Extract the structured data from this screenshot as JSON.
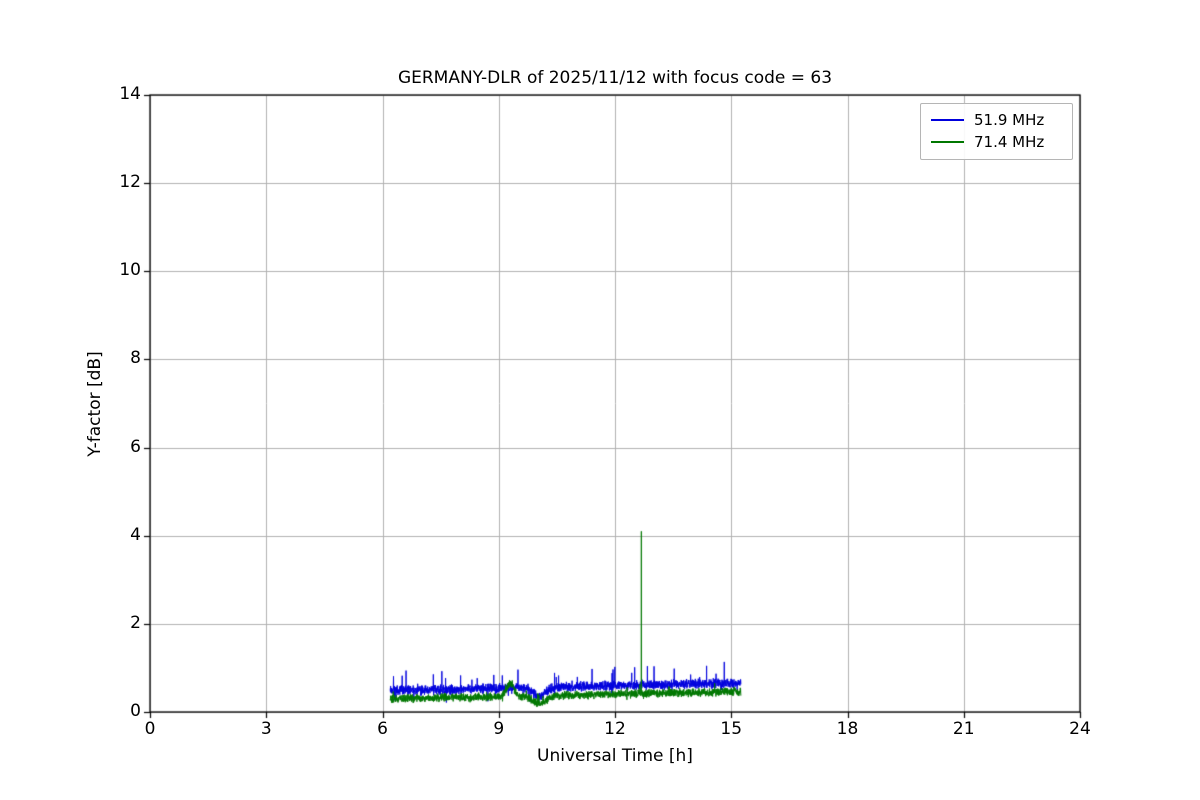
{
  "figure": {
    "background": "#ffffff"
  },
  "chart_data": {
    "type": "line",
    "title": "GERMANY-DLR of 2025/11/12 with focus code = 63",
    "xlabel": "Universal Time [h]",
    "ylabel": "Y-factor [dB]",
    "xlim": [
      0,
      24
    ],
    "ylim": [
      0,
      14
    ],
    "xticks": [
      0,
      3,
      6,
      9,
      12,
      15,
      18,
      21,
      24
    ],
    "yticks": [
      0,
      2,
      4,
      6,
      8,
      10,
      12,
      14
    ],
    "grid": true,
    "grid_color": "#b0b0b0",
    "axis_color": "#000000",
    "legend_position": "upper right",
    "series": [
      {
        "name": "51.9 MHz",
        "color": "#0000dd",
        "seed": 12345,
        "x_range": [
          6.2,
          15.25
        ],
        "sample_step": 0.004,
        "baseline": [
          0.48,
          0.66
        ],
        "noise_amplitude": 0.15,
        "spike_probability": 0.02,
        "spike_amplitude": 0.45,
        "features": [
          {
            "type": "dip",
            "center": 10.05,
            "width": 0.22,
            "depth": 0.2
          }
        ],
        "events": [],
        "description": "noisy near-flat trace between 0.3 and 1.2 dB from ~06:12 to ~15:15 UT"
      },
      {
        "name": "71.4 MHz",
        "color": "#007700",
        "seed": 67890,
        "x_range": [
          6.2,
          15.25
        ],
        "sample_step": 0.004,
        "baseline": [
          0.3,
          0.46
        ],
        "noise_amplitude": 0.13,
        "spike_probability": 0.012,
        "spike_amplitude": 0.2,
        "features": [
          {
            "type": "bump",
            "center": 9.3,
            "width": 0.12,
            "height": 0.3
          },
          {
            "type": "dip",
            "center": 10.05,
            "width": 0.25,
            "depth": 0.18
          }
        ],
        "events": [
          {
            "x": 12.68,
            "y": 4.1,
            "label": "narrow spike to 4.1 dB at ~12.7 UT"
          }
        ],
        "description": "noisy near-flat trace between 0.05 and 0.9 dB with one narrow spike to 4.1 dB at ~12.7 UT"
      }
    ]
  }
}
